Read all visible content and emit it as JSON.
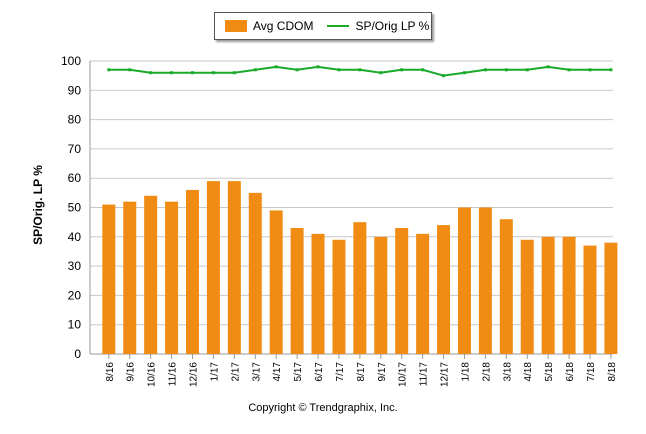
{
  "chart_data": {
    "type": "bar",
    "categories": [
      "8/16",
      "9/16",
      "10/16",
      "11/16",
      "12/16",
      "1/17",
      "2/17",
      "3/17",
      "4/17",
      "5/17",
      "6/17",
      "7/17",
      "8/17",
      "9/17",
      "10/17",
      "11/17",
      "12/17",
      "1/18",
      "2/18",
      "3/18",
      "4/18",
      "5/18",
      "6/18",
      "7/18",
      "8/18"
    ],
    "series": [
      {
        "name": "Avg CDOM",
        "type": "bar",
        "color": "#F08C14",
        "values": [
          51,
          52,
          54,
          52,
          56,
          59,
          59,
          55,
          49,
          43,
          41,
          39,
          45,
          40,
          43,
          41,
          44,
          50,
          50,
          46,
          39,
          40,
          40,
          37,
          38
        ]
      },
      {
        "name": "SP/Orig LP %",
        "type": "line",
        "color": "#1AAA2A",
        "values": [
          97,
          97,
          96,
          96,
          96,
          96,
          96,
          97,
          98,
          97,
          98,
          97,
          97,
          96,
          97,
          97,
          95,
          96,
          97,
          97,
          97,
          98,
          97,
          97,
          97
        ]
      }
    ],
    "ylabel": "SP/Orig. LP %",
    "ylim": [
      0,
      100
    ],
    "yticks": [
      0,
      10,
      20,
      30,
      40,
      50,
      60,
      70,
      80,
      90,
      100
    ],
    "grid": true,
    "legend": "top-center"
  },
  "copyright": "Copyright © Trendgraphix, Inc."
}
